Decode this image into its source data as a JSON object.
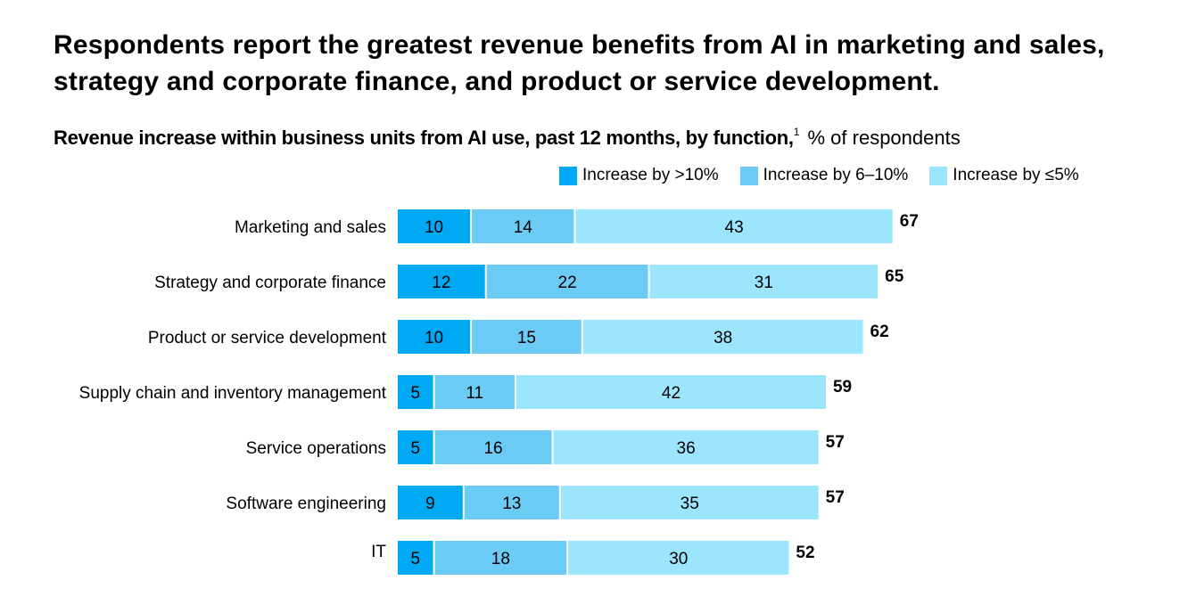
{
  "title": "Respondents report the greatest revenue benefits from AI in marketing and sales, strategy and corporate finance, and product or service development.",
  "subtitle_bold": "Revenue increase within business units from AI use, past 12 months, by function,",
  "subtitle_footnote": "1",
  "subtitle_unit": " % of respondents",
  "chart_data": {
    "type": "bar",
    "orientation": "horizontal",
    "stacked": true,
    "title": "Revenue increase within business units from AI use, past 12 months, by function",
    "xlabel": "",
    "ylabel": "",
    "unit": "% of respondents",
    "legend_position": "top-right",
    "grid": false,
    "categories": [
      "Marketing and sales",
      "Strategy and corporate finance",
      "Product or service development",
      "Supply chain and inventory management",
      "Service operations",
      "Software engineering",
      "IT"
    ],
    "series": [
      {
        "name": "Increase by >10%",
        "color": "#00a9f4",
        "values": [
          10,
          12,
          10,
          5,
          5,
          9,
          5
        ]
      },
      {
        "name": "Increase by 6–10%",
        "color": "#6ccbf5",
        "values": [
          14,
          22,
          15,
          11,
          16,
          13,
          18
        ]
      },
      {
        "name": "Increase by ≤5%",
        "color": "#9ce6fd",
        "values": [
          43,
          31,
          38,
          42,
          36,
          35,
          30
        ]
      }
    ],
    "totals": [
      67,
      65,
      62,
      59,
      57,
      57,
      52
    ]
  }
}
